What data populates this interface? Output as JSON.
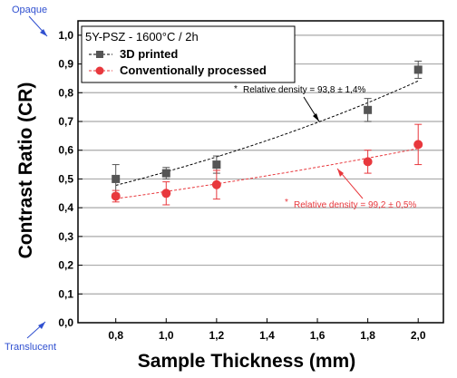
{
  "chart_data": {
    "type": "scatter",
    "xlabel": "Sample Thickness (mm)",
    "ylabel": "Contrast Ratio (CR)",
    "xlim": [
      0.65,
      2.1
    ],
    "ylim": [
      0.0,
      1.05
    ],
    "x_ticks": [
      "0,8",
      "1,0",
      "1,2",
      "1,4",
      "1,6",
      "1,8",
      "2,0"
    ],
    "x_tick_values": [
      0.8,
      1.0,
      1.2,
      1.4,
      1.6,
      1.8,
      2.0
    ],
    "y_ticks": [
      "0,0",
      "0,1",
      "0,2",
      "0,3",
      "0,4",
      "0,5",
      "0,6",
      "0,7",
      "0,8",
      "0,9",
      "1,0"
    ],
    "y_tick_values": [
      0.0,
      0.1,
      0.2,
      0.3,
      0.4,
      0.5,
      0.6,
      0.7,
      0.8,
      0.9,
      1.0
    ],
    "grid": "horizontal",
    "legend_position": "top-left",
    "legend_title": "5Y-PSZ - 1600°C / 2h",
    "series": [
      {
        "name": "3D printed",
        "color": "#555555",
        "fit_color": "#000000",
        "marker": "square",
        "x": [
          0.8,
          1.0,
          1.2,
          1.8,
          2.0
        ],
        "y": [
          0.5,
          0.52,
          0.55,
          0.74,
          0.88
        ],
        "err": [
          0.05,
          0.02,
          0.03,
          0.04,
          0.03
        ]
      },
      {
        "name": "Conventionally processed",
        "color": "#e8383d",
        "fit_color": "#e8383d",
        "marker": "circle",
        "x": [
          0.8,
          1.0,
          1.2,
          1.8,
          2.0
        ],
        "y": [
          0.44,
          0.45,
          0.48,
          0.56,
          0.62
        ],
        "err": [
          0.02,
          0.04,
          0.05,
          0.04,
          0.07
        ]
      }
    ],
    "annotations": [
      {
        "text": "Relative density = 93,8 ± 1,4%",
        "star": "*",
        "color": "#000000"
      },
      {
        "text": "Relative density = 99,2 ± 0,5%",
        "star": "*",
        "color": "#e8383d"
      }
    ],
    "side_labels": {
      "top": "Opaque",
      "bottom": "Translucent"
    }
  }
}
